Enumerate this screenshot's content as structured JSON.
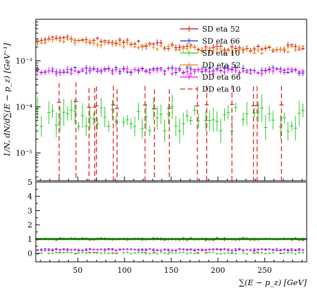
{
  "chart_data": {
    "type": "scatter",
    "xlabel": "∑(E − p_z) [GeV]",
    "ylabel": "1/N, dN/d∑(E − p_z) [GeV⁻¹]",
    "x_range": [
      5,
      295
    ],
    "y_main_range_log": [
      2.5e-06,
      0.008
    ],
    "y_ratio_range": [
      -0.6,
      5
    ],
    "x_ticks": [
      50,
      100,
      150,
      200,
      250
    ],
    "x_tick_labels": [
      "50",
      "100",
      "150",
      "200",
      "250"
    ],
    "y_main_ticks": [
      1e-05,
      0.0001,
      0.001
    ],
    "y_main_tick_labels": [
      "10⁻⁵",
      "10⁻⁴",
      "10⁻³"
    ],
    "y_ratio_ticks": [
      0,
      1,
      2,
      3,
      4,
      5
    ],
    "y_ratio_tick_labels": [
      "0",
      "1",
      "2",
      "3",
      "4",
      "5"
    ],
    "ratio_reference": 1,
    "legend_position": "top-right",
    "series": [
      {
        "name": "SD eta 52",
        "color": "#cc0000",
        "style": "cross",
        "level": 0.0024,
        "ratio": 1
      },
      {
        "name": "SD eta 66",
        "color": "#2222dd",
        "style": "cross",
        "level": 0.00062,
        "ratio": 0.25
      },
      {
        "name": "SD eta 10",
        "color": "#22cc22",
        "style": "cross",
        "level": 5.5e-05,
        "ratio": 0.02
      },
      {
        "name": "DD eta 52",
        "color": "#ee7700",
        "style": "cross",
        "level": 0.0022,
        "ratio": 1
      },
      {
        "name": "DD eta 66",
        "color": "#ee00ee",
        "style": "cross",
        "level": 0.0006,
        "ratio": 0.25
      },
      {
        "name": "DD eta 10",
        "color": "#dd2222",
        "style": "dashed",
        "level": 0.00011,
        "ratio": 0.04,
        "spike_x": [
          30,
          48,
          62,
          68,
          70,
          88,
          92,
          122,
          132,
          148,
          178,
          188,
          215,
          238,
          242,
          268
        ]
      }
    ]
  }
}
